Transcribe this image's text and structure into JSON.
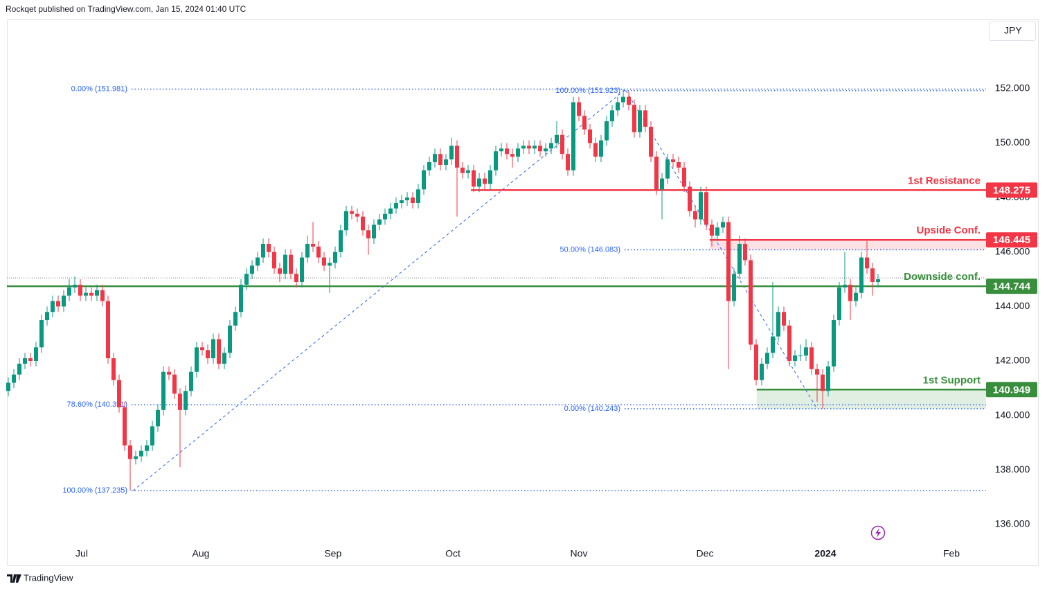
{
  "header": {
    "published": "Rockqet published on TradingView.com, Jan 15, 2024 01:40 UTC",
    "currency": "JPY",
    "brand": "TradingView"
  },
  "chart_data": {
    "type": "candlestick",
    "up_color": "#089981",
    "down_color": "#f23645",
    "open": [
      140.9,
      141.2,
      141.5,
      141.9,
      142.1,
      142.0,
      142.5,
      143.5,
      143.8,
      144.2,
      144.0,
      144.4,
      144.7,
      144.8,
      144.4,
      144.5,
      144.4,
      144.6,
      144.2,
      142.1,
      141.3,
      140.3,
      138.9,
      138.4,
      138.5,
      138.7,
      138.9,
      139.6,
      140.2,
      141.6,
      141.5,
      140.8,
      140.2,
      140.9,
      141.6,
      142.5,
      142.4,
      142.1,
      142.8,
      141.9,
      142.3,
      143.3,
      143.8,
      144.8,
      145.2,
      145.5,
      145.8,
      146.3,
      146.0,
      145.4,
      145.2,
      145.9,
      145.2,
      144.9,
      145.8,
      146.3,
      146.2,
      145.8,
      145.5,
      145.6,
      146.0,
      146.8,
      147.5,
      147.4,
      147.3,
      146.8,
      146.5,
      147.0,
      147.2,
      147.4,
      147.6,
      147.8,
      147.9,
      148.0,
      147.8,
      148.3,
      149.0,
      149.3,
      149.6,
      149.2,
      149.4,
      149.9,
      149.1,
      148.9,
      149.0,
      148.4,
      148.7,
      148.5,
      149.0,
      149.7,
      149.8,
      149.6,
      149.5,
      149.8,
      149.9,
      149.8,
      149.9,
      149.7,
      149.8,
      150.0,
      150.3,
      149.6,
      149.0,
      151.5,
      151.0,
      150.5,
      150.0,
      149.5,
      150.1,
      150.8,
      151.2,
      151.5,
      151.7,
      151.4,
      150.4,
      151.2,
      150.6,
      149.5,
      148.3,
      148.7,
      149.4,
      149.3,
      149.1,
      148.4,
      147.5,
      147.2,
      148.2,
      147.0,
      146.6,
      146.9,
      147.1,
      144.2,
      145.2,
      146.3,
      145.7,
      142.6,
      141.3,
      141.9,
      142.3,
      142.9,
      143.8,
      143.3,
      142.0,
      142.2,
      142.2,
      142.5,
      141.7,
      141.5,
      140.9,
      141.8,
      143.5,
      144.7,
      144.8,
      144.2,
      144.5,
      145.8,
      145.4,
      144.9
    ],
    "high": [
      141.4,
      141.7,
      142.1,
      142.3,
      142.3,
      142.7,
      143.7,
      144.0,
      144.4,
      144.4,
      144.6,
      145.0,
      145.1,
      145.0,
      144.7,
      144.7,
      144.8,
      144.8,
      144.4,
      142.3,
      141.5,
      140.5,
      139.1,
      138.7,
      138.9,
      139.1,
      139.8,
      140.4,
      141.8,
      141.8,
      141.7,
      141.0,
      141.1,
      141.8,
      142.7,
      142.7,
      142.6,
      143.0,
      143.0,
      142.5,
      143.5,
      144.0,
      145.0,
      145.4,
      145.7,
      146.0,
      146.5,
      146.5,
      146.2,
      145.6,
      146.1,
      146.1,
      145.4,
      146.0,
      146.6,
      147.1,
      146.4,
      146.0,
      145.8,
      146.2,
      147.0,
      147.7,
      147.7,
      147.6,
      147.5,
      147.0,
      147.2,
      147.4,
      147.6,
      147.8,
      148.0,
      148.1,
      148.2,
      148.2,
      148.5,
      149.2,
      149.5,
      149.8,
      149.8,
      149.6,
      150.2,
      150.1,
      149.3,
      149.2,
      149.2,
      148.9,
      148.9,
      149.2,
      149.9,
      150.0,
      150.0,
      149.8,
      150.0,
      150.1,
      150.1,
      150.1,
      150.1,
      150.0,
      150.2,
      150.8,
      150.5,
      149.8,
      151.7,
      151.7,
      151.2,
      150.7,
      150.2,
      150.3,
      151.0,
      151.4,
      151.7,
      151.98,
      151.9,
      151.6,
      151.4,
      151.4,
      150.8,
      149.7,
      148.9,
      149.6,
      149.6,
      149.5,
      149.3,
      148.6,
      147.7,
      148.4,
      148.4,
      147.2,
      147.1,
      147.3,
      147.3,
      145.4,
      146.6,
      146.5,
      145.9,
      142.8,
      142.1,
      142.5,
      144.9,
      144.0,
      144.0,
      143.5,
      142.4,
      142.6,
      142.8,
      142.7,
      141.9,
      141.7,
      142.0,
      143.7,
      144.9,
      146.0,
      145.0,
      144.7,
      146.0,
      146.4,
      145.6,
      145.2
    ],
    "low": [
      140.7,
      141.0,
      141.3,
      141.7,
      141.8,
      141.8,
      142.3,
      143.3,
      143.6,
      143.8,
      143.8,
      144.2,
      144.5,
      144.2,
      144.2,
      144.2,
      144.2,
      144.0,
      141.9,
      141.1,
      140.1,
      138.7,
      137.24,
      138.2,
      138.3,
      138.5,
      138.7,
      139.4,
      140.0,
      141.3,
      140.6,
      138.1,
      140.0,
      140.7,
      141.4,
      142.2,
      141.9,
      141.9,
      141.7,
      141.7,
      142.1,
      143.1,
      143.6,
      144.6,
      145.0,
      145.3,
      145.6,
      145.8,
      145.2,
      144.9,
      145.0,
      145.0,
      144.7,
      144.7,
      145.6,
      146.0,
      145.6,
      145.3,
      144.5,
      145.4,
      145.8,
      146.6,
      147.2,
      147.1,
      146.6,
      145.9,
      146.3,
      146.8,
      147.0,
      147.2,
      147.4,
      147.6,
      147.7,
      147.6,
      147.6,
      148.1,
      148.8,
      149.1,
      149.0,
      149.0,
      149.2,
      147.3,
      148.7,
      148.7,
      148.2,
      148.2,
      148.3,
      148.3,
      148.8,
      149.5,
      149.4,
      149.1,
      149.3,
      149.6,
      149.6,
      149.6,
      149.5,
      149.5,
      149.6,
      149.8,
      149.4,
      148.8,
      148.8,
      150.8,
      150.3,
      149.8,
      149.3,
      149.3,
      149.9,
      150.6,
      151.0,
      151.3,
      151.2,
      150.2,
      150.2,
      150.4,
      149.3,
      148.1,
      147.2,
      148.5,
      149.1,
      148.9,
      148.2,
      147.3,
      146.9,
      147.0,
      146.8,
      146.2,
      146.4,
      146.7,
      141.7,
      144.0,
      145.0,
      145.5,
      142.4,
      141.1,
      141.1,
      141.7,
      142.1,
      142.7,
      143.1,
      141.8,
      141.8,
      142.0,
      142.0,
      141.5,
      140.5,
      140.24,
      140.7,
      141.6,
      143.3,
      144.5,
      143.5,
      144.0,
      144.3,
      145.2,
      144.4,
      144.7
    ],
    "close": [
      141.2,
      141.5,
      141.9,
      142.1,
      142.0,
      142.5,
      143.5,
      143.8,
      144.2,
      144.0,
      144.4,
      144.7,
      144.8,
      144.4,
      144.5,
      144.4,
      144.6,
      144.2,
      142.1,
      141.3,
      140.3,
      138.9,
      138.4,
      138.5,
      138.7,
      138.9,
      139.6,
      140.2,
      141.6,
      141.5,
      140.8,
      140.2,
      140.9,
      141.6,
      142.5,
      142.4,
      142.1,
      142.8,
      141.9,
      142.3,
      143.3,
      143.8,
      144.8,
      145.2,
      145.5,
      145.8,
      146.3,
      146.0,
      145.4,
      145.2,
      145.9,
      145.2,
      144.9,
      145.8,
      146.3,
      146.2,
      145.8,
      145.5,
      145.6,
      146.0,
      146.8,
      147.5,
      147.4,
      147.3,
      146.8,
      146.5,
      147.0,
      147.2,
      147.4,
      147.6,
      147.8,
      147.9,
      148.0,
      147.8,
      148.3,
      149.0,
      149.3,
      149.6,
      149.2,
      149.4,
      149.9,
      149.1,
      148.9,
      149.0,
      148.4,
      148.7,
      148.5,
      149.0,
      149.7,
      149.8,
      149.6,
      149.5,
      149.8,
      149.9,
      149.8,
      149.9,
      149.7,
      149.8,
      150.0,
      150.3,
      149.6,
      149.0,
      151.5,
      151.0,
      150.5,
      150.0,
      149.5,
      150.1,
      150.8,
      151.2,
      151.5,
      151.7,
      151.4,
      150.4,
      151.2,
      150.6,
      149.5,
      148.3,
      148.7,
      149.4,
      149.3,
      149.1,
      148.4,
      147.5,
      147.2,
      148.2,
      147.0,
      146.6,
      146.9,
      147.1,
      144.2,
      145.2,
      146.3,
      145.7,
      142.6,
      141.3,
      141.9,
      142.3,
      142.9,
      143.8,
      143.3,
      142.0,
      142.2,
      142.2,
      142.5,
      141.7,
      141.5,
      140.9,
      141.8,
      143.5,
      144.7,
      144.8,
      144.2,
      144.5,
      145.8,
      145.4,
      144.9,
      145.0
    ],
    "xlim": [
      -0.25,
      176.5
    ],
    "xticks": [
      {
        "value": 13.25,
        "label": "Jul"
      },
      {
        "value": 34.75,
        "label": "Aug"
      },
      {
        "value": 58.6,
        "label": "Sep"
      },
      {
        "value": 80.25,
        "label": "Oct"
      },
      {
        "value": 103,
        "label": "Nov"
      },
      {
        "value": 125.75,
        "label": "Dec"
      },
      {
        "value": 147.5,
        "label": "2024"
      },
      {
        "value": 170.25,
        "label": "Feb"
      }
    ],
    "ylim": [
      134.47,
      154.49
    ],
    "yticks": [
      {
        "value": 136,
        "label": "136.000"
      },
      {
        "value": 138,
        "label": "138.000"
      },
      {
        "value": 140,
        "label": "140.000"
      },
      {
        "value": 142,
        "label": "142.000"
      },
      {
        "value": 144,
        "label": "144.000"
      },
      {
        "value": 146,
        "label": "146.000"
      },
      {
        "value": 148,
        "label": "148.000"
      },
      {
        "value": 150,
        "label": "150.000"
      },
      {
        "value": 152,
        "label": "152.000"
      }
    ],
    "last_price": 145.05,
    "levels": [
      {
        "name": "1st Resistance",
        "value": 148.275,
        "color": "#f23645",
        "start_x": 83.5
      },
      {
        "name": "Upside Conf.",
        "value": 146.445,
        "color": "#f23645",
        "start_x": 126.6,
        "zone_to": 146.083
      },
      {
        "name": "Downside conf.",
        "value": 144.744,
        "color": "#388e3c",
        "start_x": -0.25
      },
      {
        "name": "1st Support",
        "value": 140.949,
        "color": "#388e3c",
        "start_x": 135.1,
        "zone_to": 140.243
      }
    ],
    "fibs": [
      {
        "color": "#2962ff",
        "start_x": 22.25,
        "anchor_x": [
          22.5,
          111.5
        ],
        "anchor_levels": [
          2,
          0
        ],
        "levels": [
          {
            "label": "0.00% (151.981)",
            "value": 151.981
          },
          {
            "label": "78.60% (140.391)",
            "value": 140.391
          },
          {
            "label": "100.00% (137.235)",
            "value": 137.235
          }
        ]
      },
      {
        "color": "#2962ff",
        "start_x": 111.25,
        "anchor_x": [
          111.5,
          146
        ],
        "anchor_levels": [
          0,
          2
        ],
        "levels": [
          {
            "label": "100.00% (151.923)",
            "value": 151.923
          },
          {
            "label": "50.00% (146.083)",
            "value": 146.083
          },
          {
            "label": "0.00% (140.243)",
            "value": 140.243
          }
        ]
      }
    ]
  }
}
